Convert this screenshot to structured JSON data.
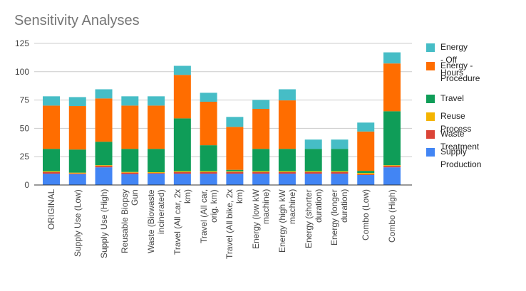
{
  "chart_data": {
    "type": "bar",
    "stacked": true,
    "title": "Sensitivity Analyses",
    "categories": [
      "ORIGINAL",
      "Supply Use (Low)",
      "Supply Use (High)",
      "Reusable Biopsy Gun",
      "Waste (Biowaste incinerated)",
      "Travel (All car, 2x km)",
      "Travel (All car, orig. km)",
      "Travel (All bike, 2x km)",
      "Energy (low kW machine)",
      "Energy (high kW machine)",
      "Energy (shorter duration)",
      "Energy (longer duration)",
      "Combo (Low)",
      "Combo (High)"
    ],
    "series": [
      {
        "name": "Supply Production",
        "color": "#4285f4",
        "values": [
          10,
          9.6,
          15.6,
          9.6,
          10,
          10,
          10,
          10,
          10,
          10,
          10,
          10,
          8.8,
          15.6
        ]
      },
      {
        "name": "Waste Treatment",
        "color": "#db4437",
        "values": [
          1.3,
          0.6,
          1.3,
          1.3,
          0.6,
          1.3,
          1.3,
          1.5,
          1.3,
          1.3,
          1.3,
          1.3,
          0.6,
          1.3
        ]
      },
      {
        "name": "Reuse Process",
        "color": "#f4b400",
        "values": [
          0.8,
          0.7,
          0.6,
          0.6,
          0.7,
          0.8,
          0.8,
          0.6,
          0.8,
          0.8,
          0.8,
          0.8,
          1.2,
          0.6
        ]
      },
      {
        "name": "Travel",
        "color": "#0f9d58",
        "values": [
          19.8,
          20.4,
          20.7,
          20.4,
          20.6,
          46.7,
          23,
          1.3,
          19.8,
          19.8,
          19.8,
          19.8,
          1.9,
          47.6
        ]
      },
      {
        "name": "Energy - Procedure",
        "color": "#ff6d00",
        "values": [
          38.2,
          38.4,
          38.2,
          38.2,
          38.2,
          38.4,
          38.4,
          37.9,
          35.3,
          42.8,
          0,
          0,
          34.7,
          42.2
        ]
      },
      {
        "name": "Energy - Off Hours",
        "color": "#46bdc6",
        "values": [
          8.2,
          7.9,
          8.1,
          8.2,
          8.2,
          8,
          7.9,
          8.8,
          7.9,
          9.8,
          8.2,
          8.2,
          7.9,
          9.8
        ]
      }
    ],
    "yticks": [
      0,
      25,
      50,
      75,
      100,
      125
    ],
    "ylim": [
      0,
      125
    ],
    "grid": true,
    "legend_position": "right",
    "legend_order": [
      "Energy - Off Hours",
      "Energy - Procedure",
      "Travel",
      "Reuse Process",
      "Waste Treatment",
      "Supply Production"
    ]
  }
}
